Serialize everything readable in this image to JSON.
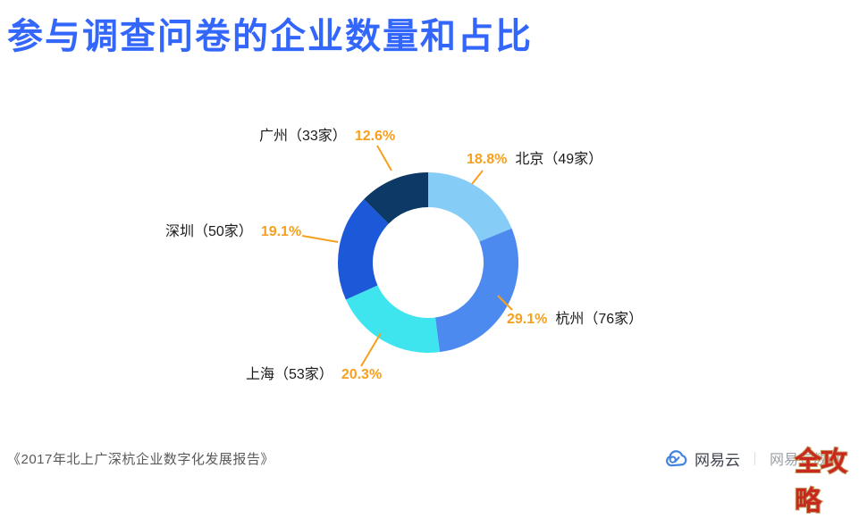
{
  "page": {
    "title": "参与调查问卷的企业数量和占比"
  },
  "footer": {
    "source": "《2017年北上广深杭企业数字化发展报告》",
    "brand": "网易云",
    "divider": "｜",
    "brand_suffix": "网易有数可",
    "watermark": "全攻略"
  },
  "colors": {
    "title_blue": "#3366FB",
    "accent_orange": "#F7A01E",
    "label_text": "#1B1B1B",
    "footer_gray": "#595959",
    "brand_blue": "#4282E2",
    "watermark_red": "#C8281E",
    "watermark_outline": "#C39A62"
  },
  "chart_data": {
    "type": "pie",
    "subtype": "donut",
    "title": "参与调查问卷的企业数量和占比",
    "units": "家",
    "start_angle_deg": 0,
    "direction": "clockwise",
    "legend": "none",
    "slices": [
      {
        "id": "beijing",
        "city": "北京",
        "count": 49,
        "count_label": "北京（49家）",
        "percent": 18.8,
        "percent_label": "18.8%",
        "color": "#85CCF7",
        "label_side": "right"
      },
      {
        "id": "hangzhou",
        "city": "杭州",
        "count": 76,
        "count_label": "杭州（76家）",
        "percent": 29.1,
        "percent_label": "29.1%",
        "color": "#4D8AF0",
        "label_side": "right"
      },
      {
        "id": "shanghai",
        "city": "上海",
        "count": 53,
        "count_label": "上海（53家）",
        "percent": 20.3,
        "percent_label": "20.3%",
        "color": "#3EE5EF",
        "label_side": "left"
      },
      {
        "id": "shenzhen",
        "city": "深圳",
        "count": 50,
        "count_label": "深圳（50家）",
        "percent": 19.1,
        "percent_label": "19.1%",
        "color": "#1B59D8",
        "label_side": "left"
      },
      {
        "id": "guangzhou",
        "city": "广州",
        "count": 33,
        "count_label": "广州（33家）",
        "percent": 12.6,
        "percent_label": "12.6%",
        "color": "#0C3965",
        "label_side": "left"
      }
    ]
  }
}
